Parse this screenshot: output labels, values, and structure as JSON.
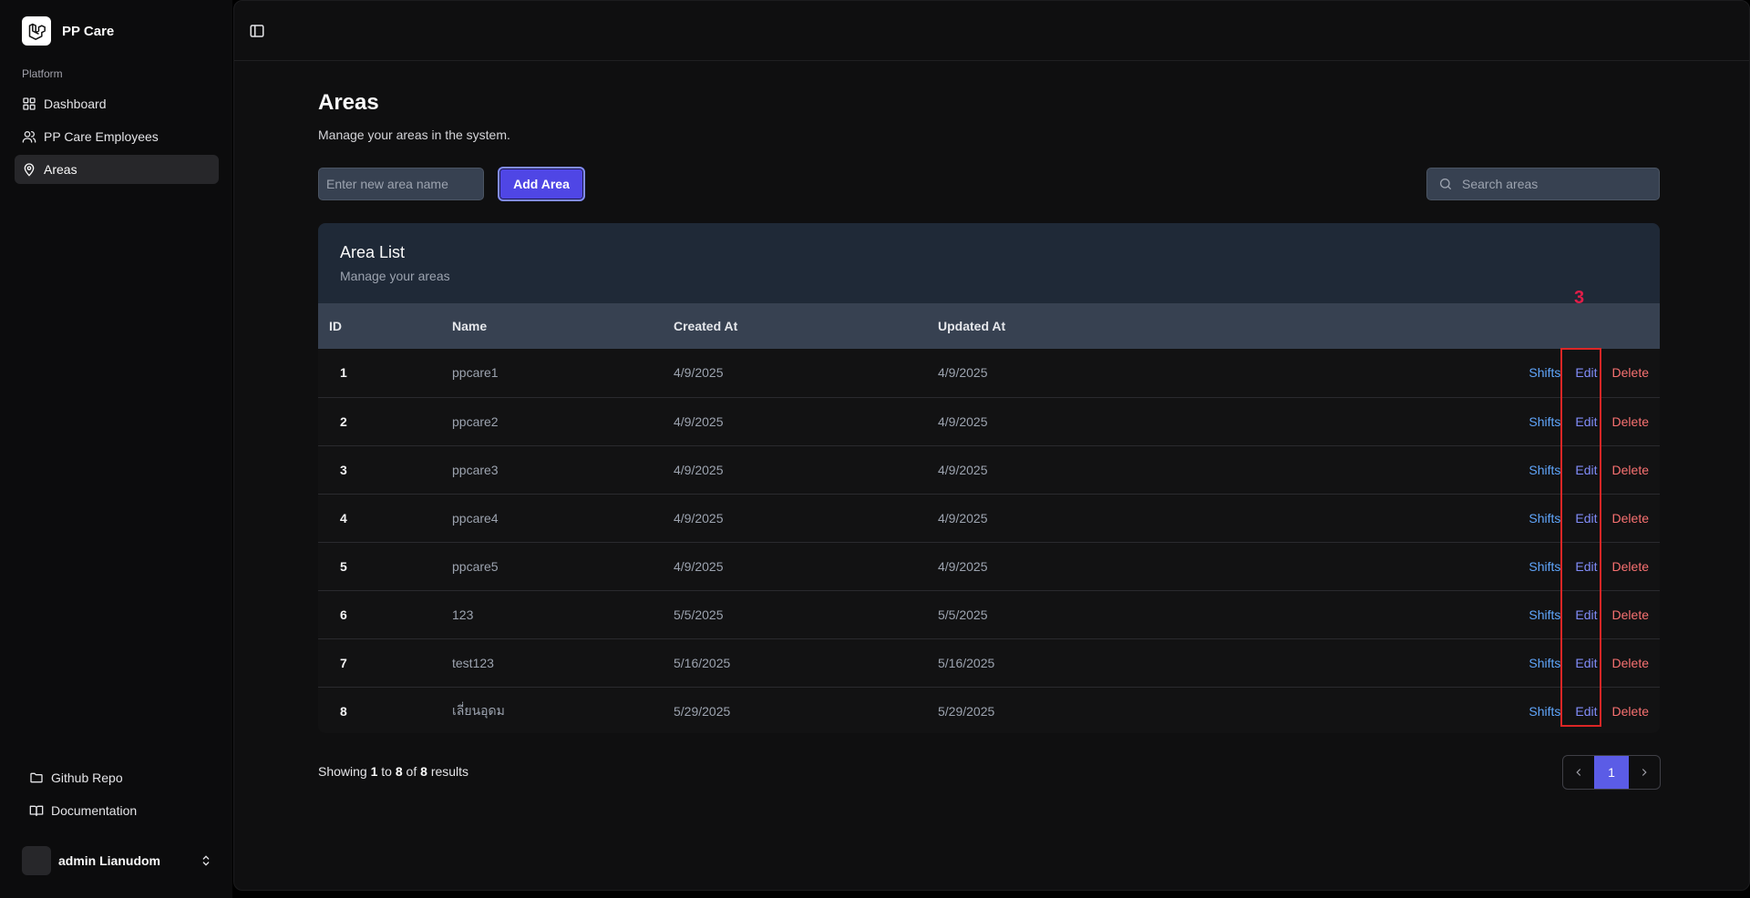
{
  "app": {
    "name": "PP Care"
  },
  "sidebar": {
    "section_label": "Platform",
    "items": [
      {
        "label": "Dashboard",
        "icon": "dashboard-icon",
        "active": false
      },
      {
        "label": "PP Care Employees",
        "icon": "users-icon",
        "active": false
      },
      {
        "label": "Areas",
        "icon": "map-pin-icon",
        "active": true
      }
    ],
    "footer": [
      {
        "label": "Github Repo",
        "icon": "folder-icon"
      },
      {
        "label": "Documentation",
        "icon": "book-icon"
      }
    ],
    "user": {
      "name": "admin Lianudom"
    }
  },
  "page": {
    "title": "Areas",
    "subtitle": "Manage your areas in the system.",
    "new_area_placeholder": "Enter new area name",
    "add_button": "Add Area",
    "search_placeholder": "Search areas"
  },
  "card": {
    "title": "Area List",
    "subtitle": "Manage your areas"
  },
  "table": {
    "columns": [
      "ID",
      "Name",
      "Created At",
      "Updated At"
    ],
    "actions": {
      "shifts": "Shifts",
      "edit": "Edit",
      "delete": "Delete"
    },
    "rows": [
      {
        "id": "1",
        "name": "ppcare1",
        "created": "4/9/2025",
        "updated": "4/9/2025"
      },
      {
        "id": "2",
        "name": "ppcare2",
        "created": "4/9/2025",
        "updated": "4/9/2025"
      },
      {
        "id": "3",
        "name": "ppcare3",
        "created": "4/9/2025",
        "updated": "4/9/2025"
      },
      {
        "id": "4",
        "name": "ppcare4",
        "created": "4/9/2025",
        "updated": "4/9/2025"
      },
      {
        "id": "5",
        "name": "ppcare5",
        "created": "4/9/2025",
        "updated": "4/9/2025"
      },
      {
        "id": "6",
        "name": "123",
        "created": "5/5/2025",
        "updated": "5/5/2025"
      },
      {
        "id": "7",
        "name": "test123",
        "created": "5/16/2025",
        "updated": "5/16/2025"
      },
      {
        "id": "8",
        "name": "เลี่ยนอุดม",
        "created": "5/29/2025",
        "updated": "5/29/2025"
      }
    ]
  },
  "annotation": {
    "label": "3",
    "color": "#dc2626"
  },
  "pagination": {
    "prefix": "Showing",
    "from": "1",
    "to_word": "to",
    "to": "8",
    "of_word": "of",
    "total": "8",
    "suffix": "results",
    "current_page": "1"
  },
  "colors": {
    "accent": "#4f46e5",
    "link": "#60a5fa",
    "danger": "#f87171"
  }
}
